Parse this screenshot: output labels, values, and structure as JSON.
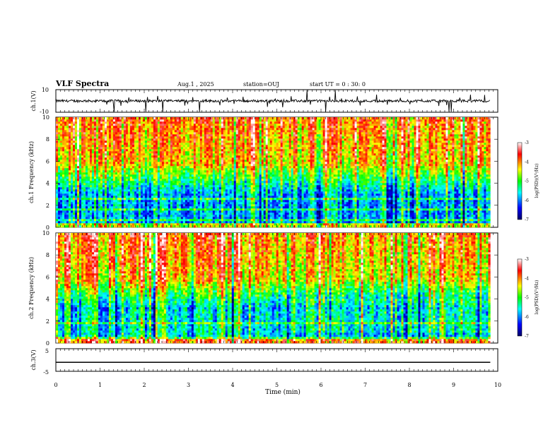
{
  "header": {
    "title": "VLF Spectra",
    "date": "Aug.1 , 2025",
    "station": "station=OUJ",
    "start": "start UT = 0 : 30: 0"
  },
  "chart_data": [
    {
      "type": "line",
      "panel": "ch1-waveform",
      "ylabel": "ch.1(V)",
      "ylim": [
        -10,
        10
      ],
      "yticks": [
        "10",
        "-10"
      ],
      "xlim": [
        0,
        10
      ],
      "description_values": {
        "baseline_v": 0,
        "noise_amplitude_v": 2,
        "spike_amplitude_v": 8
      }
    },
    {
      "type": "heatmap",
      "panel": "ch1-spectrogram",
      "ylabel": "ch.1 Frequency (kHz)",
      "ylim": [
        0,
        10
      ],
      "yticks": [
        "0",
        "2",
        "4",
        "6",
        "8",
        "10"
      ],
      "xlim": [
        0,
        9.83
      ],
      "colorbar": {
        "label": "log(PSD)(V²/Hz)",
        "range": [
          -7,
          -3
        ],
        "ticks": [
          "-3",
          "-4",
          "-5",
          "-6",
          "-7"
        ]
      }
    },
    {
      "type": "heatmap",
      "panel": "ch2-spectrogram",
      "ylabel": "ch.2 Frequency (kHz)",
      "ylim": [
        0,
        10
      ],
      "yticks": [
        "0",
        "2",
        "4",
        "6",
        "8",
        "10"
      ],
      "xlim": [
        0,
        9.83
      ],
      "colorbar": {
        "label": "log(PSD)(V²/Hz)",
        "range": [
          -7,
          -3
        ],
        "ticks": [
          "-3",
          "-4",
          "-5",
          "-6",
          "-7"
        ]
      }
    },
    {
      "type": "line",
      "panel": "ch3-waveform",
      "ylabel": "ch.3(V)",
      "ylim": [
        -5,
        5
      ],
      "yticks": [
        "5",
        "-5"
      ],
      "x": [
        0,
        9.83
      ],
      "y": [
        -1,
        -1
      ]
    }
  ],
  "xaxis": {
    "label": "Time (min)",
    "ticks": [
      "0",
      "1",
      "2",
      "3",
      "4",
      "5",
      "6",
      "7",
      "8",
      "9",
      "10"
    ]
  },
  "colors": {
    "cmap": [
      "#00008b",
      "#0000ff",
      "#00ffff",
      "#00ff00",
      "#ffff00",
      "#ff0000",
      "#ffffff"
    ]
  }
}
